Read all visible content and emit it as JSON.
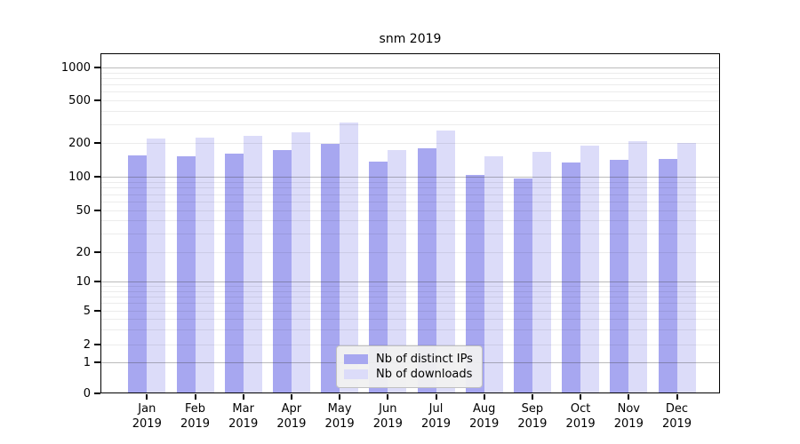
{
  "chart_data": {
    "type": "bar",
    "title": "snm 2019",
    "year_suffix": "2019",
    "categories": [
      "Jan",
      "Feb",
      "Mar",
      "Apr",
      "May",
      "Jun",
      "Jul",
      "Aug",
      "Sep",
      "Oct",
      "Nov",
      "Dec"
    ],
    "series": [
      {
        "name": "Nb of distinct IPs",
        "color": "#a7a7f0",
        "values": [
          154,
          151,
          162,
          174,
          196,
          136,
          179,
          103,
          97,
          135,
          142,
          145
        ]
      },
      {
        "name": "Nb of downloads",
        "color": "#dcdcf9",
        "values": [
          221,
          226,
          232,
          251,
          312,
          174,
          260,
          152,
          166,
          190,
          206,
          200
        ]
      }
    ],
    "yscale": "symlog",
    "yticks": [
      0,
      1,
      2,
      5,
      10,
      20,
      50,
      100,
      200,
      500,
      1000
    ],
    "ylim": [
      0,
      1400
    ],
    "grid": true,
    "legend_position": "lower center"
  }
}
